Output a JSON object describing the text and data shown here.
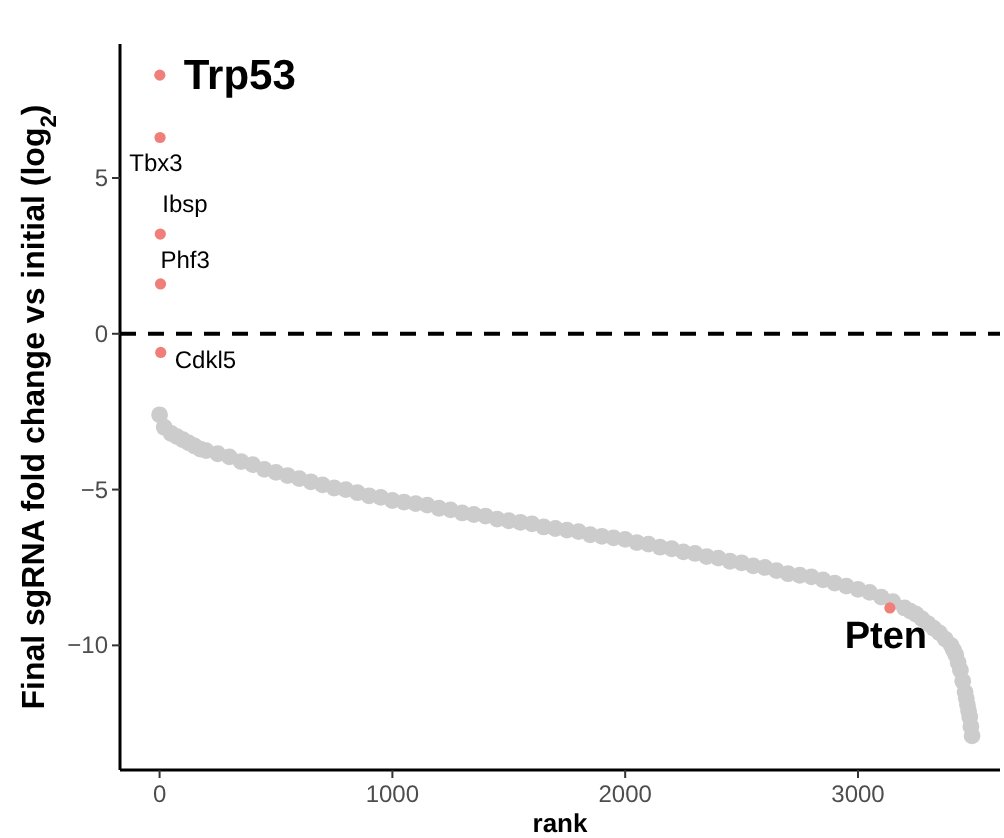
{
  "chart_data": {
    "type": "scatter",
    "xlabel": "rank",
    "ylabel": "Final sgRNA fold change vs initial (log$_{2}$)",
    "xlim": [
      -170,
      3610
    ],
    "ylim": [
      -14,
      9.3
    ],
    "xticks": [
      0,
      1000,
      2000,
      3000
    ],
    "yticks": [
      {
        "value": -10,
        "label": "−10"
      },
      {
        "value": -5,
        "label": "−5"
      },
      0,
      5
    ],
    "grid": false,
    "marker": "circle",
    "ref_lines": [
      {
        "axis": "y",
        "value": 0,
        "line_style": "dashed",
        "color": "#000000"
      }
    ],
    "series": [
      {
        "color": "#cccccc",
        "x": [
          0,
          20,
          50,
          75,
          100,
          125,
          150,
          175,
          200,
          250,
          300,
          350,
          400,
          450,
          500,
          550,
          600,
          650,
          700,
          750,
          800,
          850,
          900,
          950,
          1000,
          1050,
          1100,
          1150,
          1200,
          1250,
          1300,
          1350,
          1400,
          1450,
          1500,
          1550,
          1600,
          1650,
          1700,
          1750,
          1800,
          1850,
          1900,
          1950,
          2000,
          2050,
          2100,
          2150,
          2200,
          2250,
          2300,
          2350,
          2400,
          2450,
          2500,
          2550,
          2600,
          2650,
          2700,
          2750,
          2800,
          2850,
          2900,
          2950,
          3000,
          3050,
          3100,
          3150,
          3200,
          3225,
          3250,
          3275,
          3300,
          3325,
          3350,
          3375,
          3400,
          3410,
          3420,
          3430,
          3440,
          3450,
          3460,
          3465,
          3470,
          3475,
          3480,
          3485,
          3490
        ],
        "values": [
          -2.6,
          -3.0,
          -3.2,
          -3.3,
          -3.4,
          -3.5,
          -3.6,
          -3.7,
          -3.75,
          -3.85,
          -3.95,
          -4.1,
          -4.2,
          -4.35,
          -4.45,
          -4.55,
          -4.65,
          -4.75,
          -4.85,
          -4.95,
          -5.0,
          -5.1,
          -5.2,
          -5.25,
          -5.35,
          -5.4,
          -5.45,
          -5.5,
          -5.6,
          -5.65,
          -5.75,
          -5.8,
          -5.85,
          -5.95,
          -6.0,
          -6.05,
          -6.1,
          -6.2,
          -6.25,
          -6.3,
          -6.35,
          -6.45,
          -6.5,
          -6.55,
          -6.6,
          -6.7,
          -6.75,
          -6.85,
          -6.9,
          -7.0,
          -7.05,
          -7.15,
          -7.2,
          -7.3,
          -7.35,
          -7.45,
          -7.5,
          -7.6,
          -7.7,
          -7.75,
          -7.8,
          -7.9,
          -8.0,
          -8.1,
          -8.2,
          -8.3,
          -8.45,
          -8.6,
          -8.8,
          -8.9,
          -9.0,
          -9.15,
          -9.3,
          -9.45,
          -9.6,
          -9.8,
          -10.0,
          -10.15,
          -10.3,
          -10.55,
          -10.8,
          -11.15,
          -11.5,
          -11.7,
          -11.9,
          -12.1,
          -12.3,
          -12.6,
          -12.9
        ]
      },
      {
        "color": "#f07f7a",
        "x": [
          1,
          2,
          3,
          4,
          5,
          3137
        ],
        "values": [
          8.3,
          6.3,
          3.2,
          1.6,
          -0.6,
          -8.8
        ]
      }
    ],
    "annotations": [
      {
        "text": "Trp53",
        "x": 1,
        "y": 8.3
      },
      {
        "text": "Tbx3",
        "x": 2,
        "y": 6.3
      },
      {
        "text": "Ibsp",
        "x": 3,
        "y": 3.2
      },
      {
        "text": "Phf3",
        "x": 4,
        "y": 1.6
      },
      {
        "text": "Cdkl5",
        "x": 5,
        "y": -0.6
      },
      {
        "text": "Pten",
        "x": 3137,
        "y": -8.8
      }
    ]
  }
}
